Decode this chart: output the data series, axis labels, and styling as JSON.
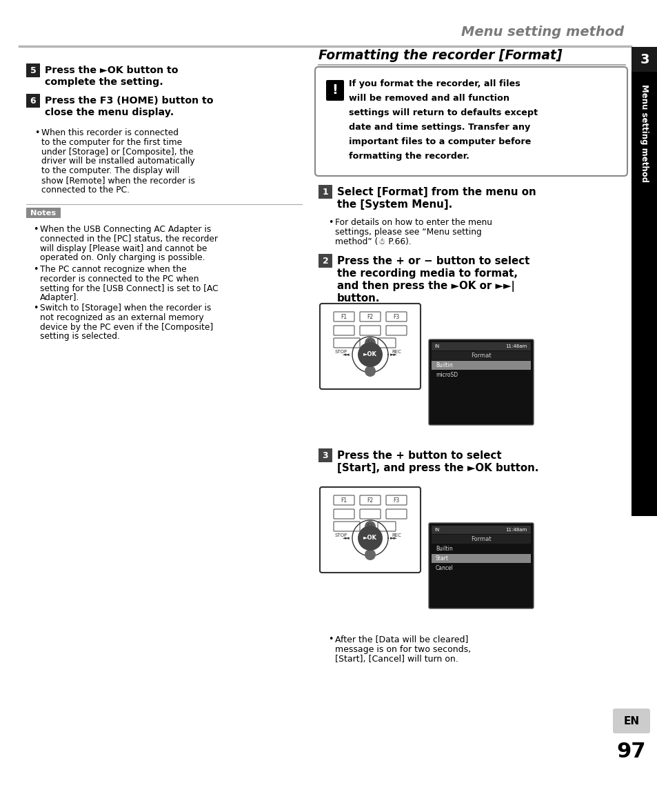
{
  "page_bg": "#ffffff",
  "header_title": "Menu setting method",
  "header_title_color": "#7a7a7a",
  "header_line_color": "#b5b5b5",
  "section_title": "Formatting the recorder [Format]",
  "warning_lines": [
    "If you format the recorder, all files",
    "will be removed and all function",
    "settings will return to defaults except",
    "date and time settings. Transfer any",
    "important files to a computer before",
    "formatting the recorder."
  ],
  "step5_lines": [
    "Press the ►OK button to",
    "complete the setting."
  ],
  "step6_lines": [
    "Press the F3 (HOME) button to",
    "close the menu display."
  ],
  "step6_bullet": [
    "When this recorder is connected",
    "to the computer for the first time",
    "under [Storage] or [Composite], the",
    "driver will be installed automatically",
    "to the computer. The display will",
    "show [Remote] when the recorder is",
    "connected to the PC."
  ],
  "notes_label": "Notes",
  "note1": [
    "When the USB Connecting AC Adapter is",
    "connected in the [PC] status, the recorder",
    "will display [Please wait] and cannot be",
    "operated on. Only charging is possible."
  ],
  "note2": [
    "The PC cannot recognize when the",
    "recorder is connected to the PC when",
    "setting for the [USB Connect] is set to [AC",
    "Adapter]."
  ],
  "note3": [
    "Switch to [Storage] when the recorder is",
    "not recognized as an external memory",
    "device by the PC even if the [Composite]",
    "setting is selected."
  ],
  "rs1_lines": [
    "Select [Format] from the menu on",
    "the [System Menu]."
  ],
  "rs1_bullet": [
    "For details on how to enter the menu",
    "settings, please see “Menu setting",
    "method” (☃ P.66)."
  ],
  "rs2_lines": [
    "Press the + or − button to select",
    "the recording media to format,",
    "and then press the ►OK or ►►|",
    "button."
  ],
  "rs3_lines": [
    "Press the + button to select",
    "[Start], and press the ►OK button."
  ],
  "rs3_bullet": [
    "After the [Data will be cleared]",
    "message is on for two seconds,",
    "[Start], [Cancel] will turn on."
  ],
  "sidebar_text": "Menu setting method",
  "tab_number": "3",
  "page_number": "97",
  "en_label": "EN"
}
